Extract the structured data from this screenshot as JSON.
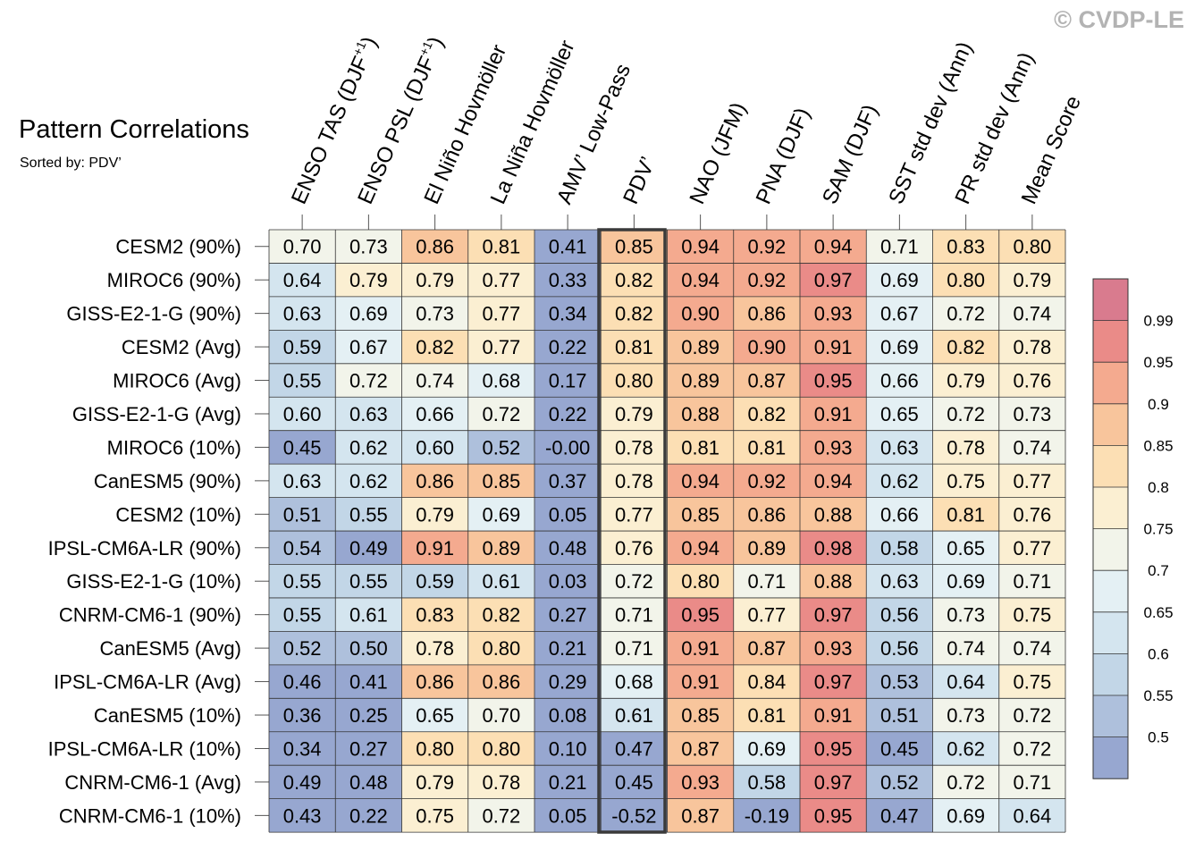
{
  "watermark": "© CVDP-LE",
  "chart_data": {
    "type": "heatmap",
    "title": "Pattern Correlations",
    "subtitle": "Sorted by: PDV’",
    "highlight_column": "PDV’",
    "columns": [
      "ENSO TAS (DJF+1)",
      "ENSO PSL (DJF+1)",
      "El Niño Hovmöller",
      "La Niña Hovmöller",
      "AMV’ Low-Pass",
      "PDV’",
      "NAO (JFM)",
      "PNA (DJF)",
      "SAM (DJF)",
      "SST std dev (Ann)",
      "PR std dev (Ann)",
      "Mean Score"
    ],
    "rows": [
      "CESM2 (90%)",
      "MIROC6 (90%)",
      "GISS-E2-1-G (90%)",
      "CESM2 (Avg)",
      "MIROC6 (Avg)",
      "GISS-E2-1-G (Avg)",
      "MIROC6 (10%)",
      "CanESM5 (90%)",
      "CESM2 (10%)",
      "IPSL-CM6A-LR (90%)",
      "GISS-E2-1-G (10%)",
      "CNRM-CM6-1 (90%)",
      "CanESM5 (Avg)",
      "IPSL-CM6A-LR (Avg)",
      "CanESM5 (10%)",
      "IPSL-CM6A-LR (10%)",
      "CNRM-CM6-1 (Avg)",
      "CNRM-CM6-1 (10%)"
    ],
    "values": [
      [
        "0.70",
        "0.73",
        "0.86",
        "0.81",
        "0.41",
        "0.85",
        "0.94",
        "0.92",
        "0.94",
        "0.71",
        "0.83",
        "0.80"
      ],
      [
        "0.64",
        "0.79",
        "0.79",
        "0.77",
        "0.33",
        "0.82",
        "0.94",
        "0.92",
        "0.97",
        "0.69",
        "0.80",
        "0.79"
      ],
      [
        "0.63",
        "0.69",
        "0.73",
        "0.77",
        "0.34",
        "0.82",
        "0.90",
        "0.86",
        "0.93",
        "0.67",
        "0.72",
        "0.74"
      ],
      [
        "0.59",
        "0.67",
        "0.82",
        "0.77",
        "0.22",
        "0.81",
        "0.89",
        "0.90",
        "0.91",
        "0.69",
        "0.82",
        "0.78"
      ],
      [
        "0.55",
        "0.72",
        "0.74",
        "0.68",
        "0.17",
        "0.80",
        "0.89",
        "0.87",
        "0.95",
        "0.66",
        "0.79",
        "0.76"
      ],
      [
        "0.60",
        "0.63",
        "0.66",
        "0.72",
        "0.22",
        "0.79",
        "0.88",
        "0.82",
        "0.91",
        "0.65",
        "0.72",
        "0.73"
      ],
      [
        "0.45",
        "0.62",
        "0.60",
        "0.52",
        "-0.00",
        "0.78",
        "0.81",
        "0.81",
        "0.93",
        "0.63",
        "0.78",
        "0.74"
      ],
      [
        "0.63",
        "0.62",
        "0.86",
        "0.85",
        "0.37",
        "0.78",
        "0.94",
        "0.92",
        "0.94",
        "0.62",
        "0.75",
        "0.77"
      ],
      [
        "0.51",
        "0.55",
        "0.79",
        "0.69",
        "0.05",
        "0.77",
        "0.85",
        "0.86",
        "0.88",
        "0.66",
        "0.81",
        "0.76"
      ],
      [
        "0.54",
        "0.49",
        "0.91",
        "0.89",
        "0.48",
        "0.76",
        "0.94",
        "0.89",
        "0.98",
        "0.58",
        "0.65",
        "0.77"
      ],
      [
        "0.55",
        "0.55",
        "0.59",
        "0.61",
        "0.03",
        "0.72",
        "0.80",
        "0.71",
        "0.88",
        "0.63",
        "0.69",
        "0.71"
      ],
      [
        "0.55",
        "0.61",
        "0.83",
        "0.82",
        "0.27",
        "0.71",
        "0.95",
        "0.77",
        "0.97",
        "0.56",
        "0.73",
        "0.75"
      ],
      [
        "0.52",
        "0.50",
        "0.78",
        "0.80",
        "0.21",
        "0.71",
        "0.91",
        "0.87",
        "0.93",
        "0.56",
        "0.74",
        "0.74"
      ],
      [
        "0.46",
        "0.41",
        "0.86",
        "0.86",
        "0.29",
        "0.68",
        "0.91",
        "0.84",
        "0.97",
        "0.53",
        "0.64",
        "0.75"
      ],
      [
        "0.36",
        "0.25",
        "0.65",
        "0.70",
        "0.08",
        "0.61",
        "0.85",
        "0.81",
        "0.91",
        "0.51",
        "0.73",
        "0.72"
      ],
      [
        "0.34",
        "0.27",
        "0.80",
        "0.80",
        "0.10",
        "0.47",
        "0.87",
        "0.69",
        "0.95",
        "0.45",
        "0.62",
        "0.72"
      ],
      [
        "0.49",
        "0.48",
        "0.79",
        "0.78",
        "0.21",
        "0.45",
        "0.93",
        "0.58",
        "0.97",
        "0.52",
        "0.72",
        "0.71"
      ],
      [
        "0.43",
        "0.22",
        "0.75",
        "0.72",
        "0.05",
        "-0.52",
        "0.87",
        "-0.19",
        "0.95",
        "0.47",
        "0.69",
        "0.64"
      ]
    ],
    "colorbar": {
      "labels": [
        "0.99",
        "0.95",
        "0.9",
        "0.85",
        "0.8",
        "0.75",
        "0.7",
        "0.65",
        "0.6",
        "0.55",
        "0.5"
      ],
      "levels": [
        0.5,
        0.55,
        0.6,
        0.65,
        0.7,
        0.75,
        0.8,
        0.85,
        0.9,
        0.95,
        0.99
      ],
      "colors": [
        "#97a7d0",
        "#aec0dc",
        "#c2d6e7",
        "#d4e5ef",
        "#e4f0f4",
        "#f2f4ea",
        "#fbefd2",
        "#fcdfb4",
        "#f8c59c",
        "#f4aa8f",
        "#ea8b88",
        "#d97b8e"
      ]
    }
  }
}
